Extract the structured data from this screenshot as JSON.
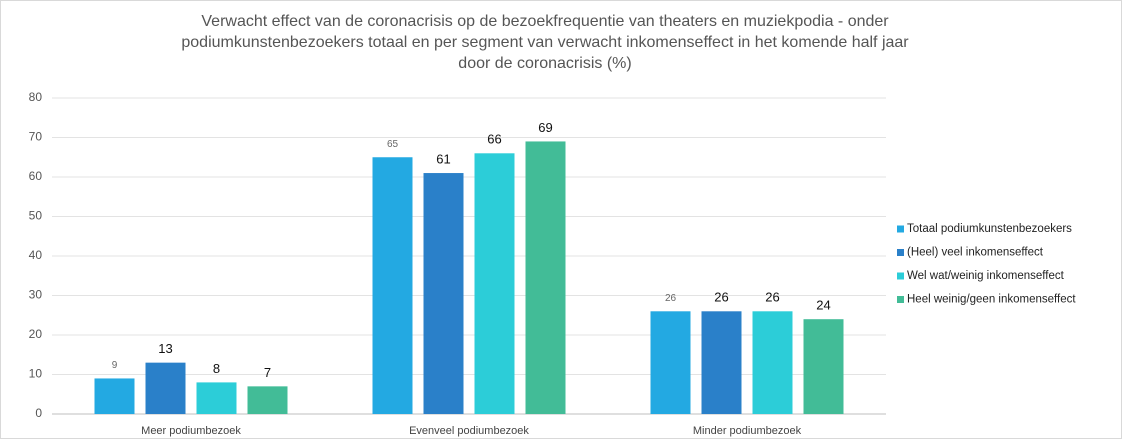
{
  "chart_data": {
    "type": "bar",
    "title": [
      "Verwacht effect van de coronacrisis op de bezoekfrequentie van theaters en muziekpodia  - onder",
      "podiumkunstenbezoekers totaal en per segment van verwacht inkomenseffect in het komende half jaar",
      "door de coronacrisis (%)"
    ],
    "categories": [
      "Meer podiumbezoek",
      "Evenveel podiumbezoek",
      "Minder podiumbezoek"
    ],
    "series": [
      {
        "name": "Totaal podiumkunstenbezoekers",
        "color": "#23a9e2",
        "values": [
          9,
          65,
          26
        ]
      },
      {
        "name": "(Heel) veel inkomenseffect",
        "color": "#2a80c9",
        "values": [
          13,
          61,
          26
        ]
      },
      {
        "name": "Wel wat/weinig inkomenseffect",
        "color": "#2ccdd8",
        "values": [
          8,
          66,
          26
        ]
      },
      {
        "name": "Heel weinig/geen inkomenseffect",
        "color": "#42bc97",
        "values": [
          7,
          69,
          24
        ]
      }
    ],
    "ylim": [
      0,
      80
    ],
    "yticks": [
      0,
      10,
      20,
      30,
      40,
      50,
      60,
      70,
      80
    ],
    "grid": true,
    "legend": "right"
  }
}
